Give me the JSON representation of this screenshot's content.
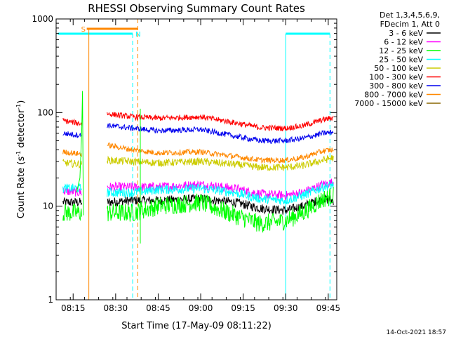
{
  "chart_data": {
    "type": "line",
    "title": "RHESSI Observing Summary Count Rates",
    "xlabel": "Start Time (17-May-09 08:11:22)",
    "ylabel_main": "Count Rate (s",
    "ylabel_sup1": "-1",
    "ylabel_mid": " detector",
    "ylabel_sup2": "-1",
    "ylabel_end": ")",
    "yscale": "log",
    "ylim": [
      1,
      1000
    ],
    "xlim_minutes": [
      8.15,
      9.8
    ],
    "y_ticks": [
      {
        "value": 1,
        "label": "1"
      },
      {
        "value": 10,
        "label": "10"
      },
      {
        "value": 100,
        "label": "100"
      },
      {
        "value": 1000,
        "label": "1000"
      }
    ],
    "x_ticks": [
      {
        "value": 8.25,
        "label": "08:15"
      },
      {
        "value": 8.5,
        "label": "08:30"
      },
      {
        "value": 8.75,
        "label": "08:45"
      },
      {
        "value": 9.0,
        "label": "09:00"
      },
      {
        "value": 9.25,
        "label": "09:15"
      },
      {
        "value": 9.5,
        "label": "09:30"
      },
      {
        "value": 9.75,
        "label": "09:45"
      }
    ],
    "legend_header": [
      "Det 1,3,4,5,6,9,",
      "FDecim 1, Att 0"
    ],
    "series": [
      {
        "name": "3 - 6 keV",
        "color": "#000000",
        "x": [
          8.19,
          8.3,
          8.3,
          8.45,
          8.6,
          8.75,
          9.0,
          9.2,
          9.35,
          9.5,
          9.6,
          9.72,
          9.78
        ],
        "values": [
          11,
          11,
          null,
          11,
          11.5,
          11.5,
          12,
          11,
          9.5,
          9,
          10,
          12,
          11.5
        ]
      },
      {
        "name": "6 - 12 keV",
        "color": "#ff00ff",
        "x": [
          8.19,
          8.3,
          8.3,
          8.45,
          8.6,
          8.75,
          9.0,
          9.2,
          9.35,
          9.5,
          9.6,
          9.72,
          9.78
        ],
        "values": [
          14.5,
          14,
          null,
          16,
          16,
          16,
          17,
          15.5,
          13.5,
          13,
          14,
          17,
          18
        ]
      },
      {
        "name": "12 - 25 keV",
        "color": "#00ff00",
        "x": [
          8.19,
          8.3,
          8.3,
          8.45,
          8.6,
          8.75,
          9.0,
          9.2,
          9.35,
          9.5,
          9.6,
          9.72,
          9.78
        ],
        "values": [
          8.5,
          8.5,
          null,
          8.5,
          8.5,
          10,
          11,
          8,
          6.5,
          7,
          8.5,
          12,
          13
        ]
      },
      {
        "name": "25 - 50 keV",
        "color": "#00ffff",
        "x": [
          8.19,
          8.3,
          8.3,
          8.45,
          8.6,
          8.75,
          9.0,
          9.2,
          9.35,
          9.5,
          9.6,
          9.72,
          9.78
        ],
        "values": [
          15.5,
          15.5,
          null,
          14,
          14,
          15,
          15.5,
          14,
          12,
          11.5,
          13,
          16,
          17
        ]
      },
      {
        "name": "50 - 100 keV",
        "color": "#cccc00",
        "x": [
          8.19,
          8.3,
          8.3,
          8.45,
          8.6,
          8.75,
          9.0,
          9.2,
          9.35,
          9.5,
          9.6,
          9.72,
          9.78
        ],
        "values": [
          29,
          28,
          null,
          31,
          30,
          29,
          30,
          28,
          26,
          26,
          27,
          31,
          33
        ]
      },
      {
        "name": "100 - 300 keV",
        "color": "#ff0000",
        "x": [
          8.19,
          8.3,
          8.3,
          8.45,
          8.6,
          8.75,
          9.0,
          9.2,
          9.35,
          9.5,
          9.6,
          9.72,
          9.78
        ],
        "values": [
          82,
          76,
          null,
          97,
          90,
          87,
          90,
          78,
          69,
          68,
          72,
          84,
          88
        ]
      },
      {
        "name": "300 - 800 keV",
        "color": "#0000ee",
        "x": [
          8.19,
          8.3,
          8.3,
          8.45,
          8.6,
          8.75,
          9.0,
          9.2,
          9.35,
          9.5,
          9.6,
          9.72,
          9.78
        ],
        "values": [
          60,
          57,
          null,
          73,
          68,
          64,
          66,
          56,
          50,
          50,
          53,
          60,
          62
        ]
      },
      {
        "name": "800 - 7000 keV",
        "color": "#ff8800",
        "x": [
          8.19,
          8.3,
          8.3,
          8.45,
          8.6,
          8.75,
          9.0,
          9.2,
          9.35,
          9.5,
          9.6,
          9.72,
          9.78
        ],
        "values": [
          38,
          36,
          null,
          45,
          40,
          37,
          38,
          34,
          31,
          31,
          33,
          39,
          40
        ]
      },
      {
        "name": "7000 - 15000 keV",
        "color": "#886600",
        "x": [
          8.19,
          9.78
        ],
        "values": [
          null,
          null
        ]
      }
    ],
    "attenuator_S": {
      "label": "S",
      "color": "#ff8800",
      "start": 8.33,
      "end": 8.63
    },
    "night_N": {
      "label": "N",
      "color": "#00ffff",
      "segments": [
        [
          8.16,
          8.6
        ],
        [
          9.5,
          9.76
        ]
      ]
    },
    "night_lines": [
      9.5,
      9.76
    ],
    "attenuator_dashed_end": 8.63,
    "night_dashed_start": 8.6
  },
  "footer": {
    "timestamp": "14-Oct-2021 18:57"
  }
}
